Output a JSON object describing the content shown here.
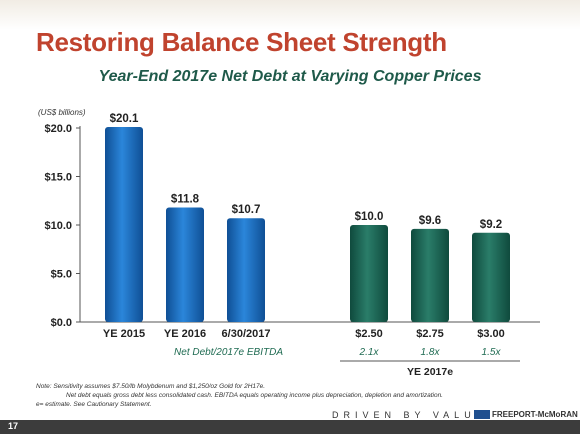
{
  "title": "Restoring Balance Sheet Strength",
  "subtitle": "Year-End 2017e Net Debt at Varying Copper Prices",
  "units": "(US$ billions)",
  "chart_data": {
    "type": "bar",
    "ylim": [
      0,
      20
    ],
    "yticks": [
      "$0.0",
      "$5.0",
      "$10.0",
      "$15.0",
      "$20.0"
    ],
    "ytick_values": [
      0,
      5,
      10,
      15,
      20
    ],
    "categories": [
      "YE 2015",
      "YE 2016",
      "6/30/2017",
      "$2.50",
      "$2.75",
      "$3.00"
    ],
    "values": [
      20.1,
      11.8,
      10.7,
      10.0,
      9.6,
      9.2
    ],
    "value_labels": [
      "$20.1",
      "$11.8",
      "$10.7",
      "$10.0",
      "$9.6",
      "$9.2"
    ],
    "series_colors": [
      "#1b6fc1",
      "#1b6fc1",
      "#1b6fc1",
      "#1e6b5a",
      "#1e6b5a",
      "#1e6b5a"
    ],
    "ebitda_label": "Net Debt/2017e EBITDA",
    "ebitda_values": [
      "2.1x",
      "1.8x",
      "1.5x"
    ],
    "group_label": "YE 2017e"
  },
  "notes": {
    "line1": "Note: Sensitivity assumes $7.50/lb Molybdenum and $1,250/oz Gold for 2H17e.",
    "line2": "Net debt equals gross debt less consolidated cash. EBITDA equals operating income plus depreciation, depletion and amortization.",
    "line3": "e= estimate. See Cautionary Statement."
  },
  "footer": {
    "page_number": "17",
    "tagline": "DRIVEN BY VALUE",
    "logo_text": "FREEPORT-McMoRAN",
    "logo_icon": "fcx-logo-icon"
  }
}
